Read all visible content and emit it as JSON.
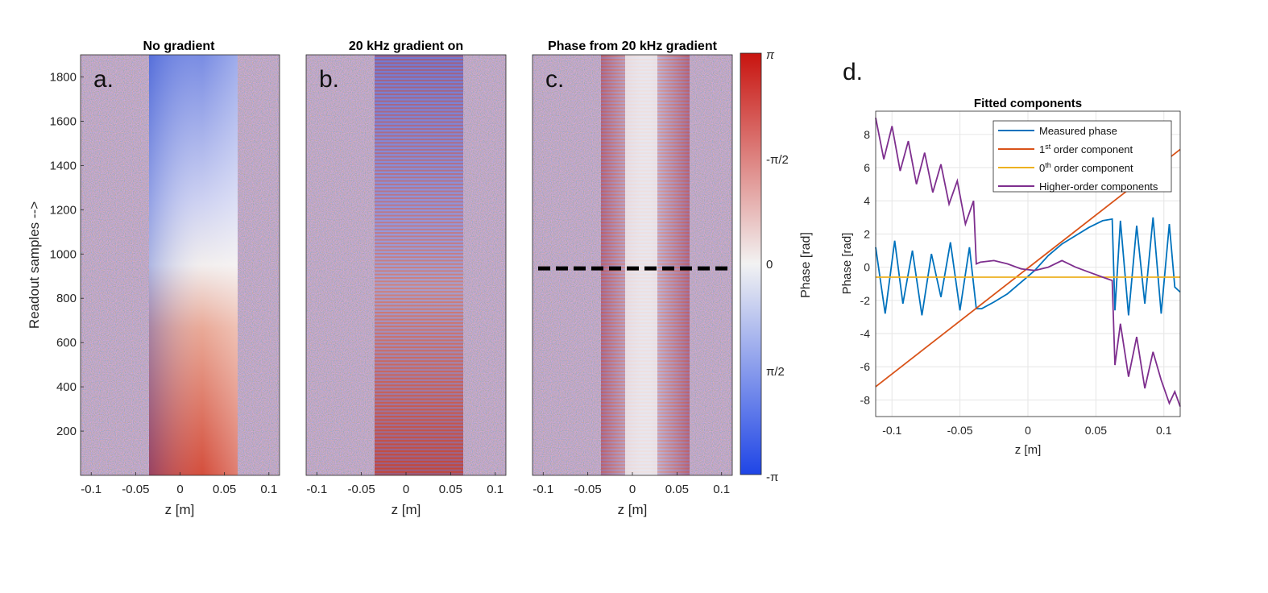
{
  "figure": {
    "panel_a": {
      "letter": "a.",
      "title": "No gradient",
      "xlabel": "z [m]",
      "ylabel": "Readout samples -->"
    },
    "panel_b": {
      "letter": "b.",
      "title": "20 kHz gradient on",
      "xlabel": "z [m]"
    },
    "panel_c": {
      "letter": "c.",
      "title": "Phase from 20 kHz gradient",
      "xlabel": "z [m]"
    },
    "colorbar": {
      "label": "Phase [rad]",
      "ticks": [
        "π",
        "-π/2",
        "0",
        "π/2",
        "-π"
      ],
      "colors": {
        "top": "#c8140f",
        "mid": "#f2f2f2",
        "bottom": "#1f45e6"
      }
    },
    "panel_d": {
      "letter": "d."
    }
  },
  "heatmap_axes": {
    "xticks": [
      "-0.1",
      "-0.05",
      "0",
      "0.05",
      "0.1"
    ],
    "yticks": [
      "1800",
      "1600",
      "1400",
      "1200",
      "1000",
      "800",
      "600",
      "400",
      "200"
    ]
  },
  "chart_data": [
    {
      "type": "heatmap",
      "title": "No gradient",
      "xlabel": "z [m]",
      "ylabel": "Readout samples -->",
      "xlim": [
        -0.112,
        0.112
      ],
      "ylim": [
        0,
        1900
      ],
      "xticks": [
        -0.1,
        -0.05,
        0,
        0.05,
        0.1
      ],
      "yticks": [
        200,
        400,
        600,
        800,
        1000,
        1200,
        1400,
        1600,
        1800
      ],
      "object_extent_z": [
        -0.035,
        0.065
      ],
      "colormap_range": [
        -3.1416,
        3.1416
      ]
    },
    {
      "type": "heatmap",
      "title": "20 kHz gradient on",
      "xlabel": "z [m]",
      "xlim": [
        -0.112,
        0.112
      ],
      "ylim": [
        0,
        1900
      ],
      "xticks": [
        -0.1,
        -0.05,
        0,
        0.05,
        0.1
      ],
      "object_extent_z": [
        -0.035,
        0.065
      ]
    },
    {
      "type": "heatmap",
      "title": "Phase from 20 kHz gradient",
      "xlabel": "z [m]",
      "xlim": [
        -0.112,
        0.112
      ],
      "ylim": [
        0,
        1900
      ],
      "xticks": [
        -0.1,
        -0.05,
        0,
        0.05,
        0.1
      ],
      "object_extent_z": [
        -0.035,
        0.065
      ],
      "dashed_line_readout_sample": 935
    },
    {
      "type": "line",
      "title": "Fitted components",
      "xlabel": "z [m]",
      "ylabel": "Phase [rad]",
      "xlim": [
        -0.112,
        0.112
      ],
      "ylim": [
        -9,
        9.4
      ],
      "xticks": [
        -0.1,
        -0.05,
        0,
        0.05,
        0.1
      ],
      "yticks": [
        -8,
        -6,
        -4,
        -2,
        0,
        2,
        4,
        6,
        8
      ],
      "grid": true,
      "legend_position": "top-right",
      "legend": [
        {
          "label": "Measured phase",
          "sup": ""
        },
        {
          "label": " order component",
          "prefix": "1",
          "sup": "st"
        },
        {
          "label": " order component",
          "prefix": "0",
          "sup": "th"
        },
        {
          "label": "Higher-order components",
          "sup": ""
        }
      ],
      "series": [
        {
          "name": "Measured phase",
          "color": "#0072BD",
          "x": [
            -0.112,
            -0.105,
            -0.098,
            -0.092,
            -0.085,
            -0.078,
            -0.071,
            -0.064,
            -0.057,
            -0.05,
            -0.043,
            -0.038,
            -0.034,
            -0.025,
            -0.015,
            -0.005,
            0.005,
            0.015,
            0.025,
            0.035,
            0.045,
            0.055,
            0.062,
            0.064,
            0.068,
            0.074,
            0.08,
            0.086,
            0.092,
            0.098,
            0.104,
            0.108,
            0.112
          ],
          "y": [
            1.2,
            -2.8,
            1.6,
            -2.2,
            1.0,
            -2.9,
            0.8,
            -1.8,
            1.5,
            -2.6,
            1.2,
            -2.5,
            -2.5,
            -2.1,
            -1.6,
            -0.9,
            -0.2,
            0.7,
            1.4,
            1.9,
            2.4,
            2.8,
            2.9,
            -2.6,
            2.8,
            -2.9,
            2.5,
            -2.2,
            3.0,
            -2.8,
            2.6,
            -1.2,
            -1.5
          ]
        },
        {
          "name": "1st order component",
          "color": "#D95319",
          "x": [
            -0.112,
            0.112
          ],
          "y": [
            -7.2,
            7.1
          ]
        },
        {
          "name": "0th order component",
          "color": "#EDB120",
          "x": [
            -0.112,
            0.112
          ],
          "y": [
            -0.6,
            -0.6
          ]
        },
        {
          "name": "Higher-order components",
          "color": "#7E2F8E",
          "x": [
            -0.112,
            -0.106,
            -0.1,
            -0.094,
            -0.088,
            -0.082,
            -0.076,
            -0.07,
            -0.064,
            -0.058,
            -0.052,
            -0.046,
            -0.04,
            -0.038,
            -0.035,
            -0.025,
            -0.015,
            -0.005,
            0.005,
            0.015,
            0.025,
            0.035,
            0.045,
            0.055,
            0.062,
            0.064,
            0.068,
            0.074,
            0.08,
            0.086,
            0.092,
            0.098,
            0.104,
            0.108,
            0.112
          ],
          "y": [
            9.0,
            6.5,
            8.5,
            5.8,
            7.6,
            5.0,
            6.9,
            4.5,
            6.2,
            3.8,
            5.2,
            2.6,
            4.0,
            0.2,
            0.3,
            0.4,
            0.2,
            -0.1,
            -0.2,
            0.0,
            0.4,
            0.0,
            -0.3,
            -0.6,
            -0.8,
            -5.9,
            -3.4,
            -6.6,
            -4.2,
            -7.3,
            -5.1,
            -6.8,
            -8.2,
            -7.5,
            -8.4
          ]
        }
      ]
    }
  ]
}
